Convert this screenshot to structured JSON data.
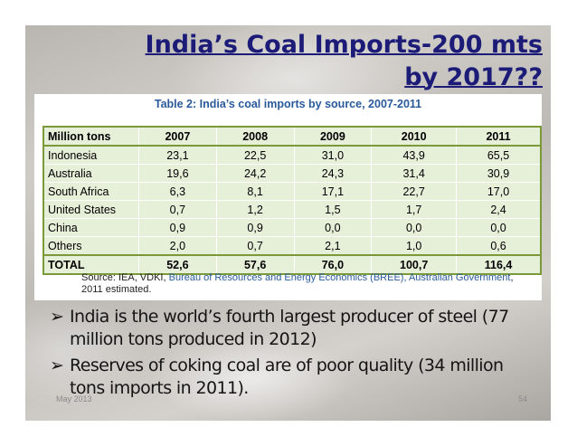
{
  "title": {
    "line1": "India’s Coal Imports-200 mts",
    "line2": "by 2017??"
  },
  "table": {
    "caption": "Table 2: India’s coal imports by source, 2007-2011",
    "header": [
      "Million tons",
      "2007",
      "2008",
      "2009",
      "2010",
      "2011"
    ],
    "rows": [
      [
        "Indonesia",
        "23,1",
        "22,5",
        "31,0",
        "43,9",
        "65,5"
      ],
      [
        "Australia",
        "19,6",
        "24,2",
        "24,3",
        "31,4",
        "30,9"
      ],
      [
        "South Africa",
        "6,3",
        "8,1",
        "17,1",
        "22,7",
        "17,0"
      ],
      [
        "United States",
        "0,7",
        "1,2",
        "1,5",
        "1,7",
        "2,4"
      ],
      [
        "China",
        "0,9",
        "0,9",
        "0,0",
        "0,0",
        "0,0"
      ],
      [
        "Others",
        "2,0",
        "0,7",
        "2,1",
        "1,0",
        "0,6"
      ]
    ],
    "total": [
      "TOTAL",
      "52,6",
      "57,6",
      "76,0",
      "100,7",
      "116,4"
    ],
    "source_prefix": "Source: IEA, VDKI,",
    "source_link": "Bureau of Resources and Energy Economics (BREE), Australian Government",
    "source_suffix": ", 2011 estimated."
  },
  "bullets": [
    "India is the world’s fourth largest producer of steel (77 million tons produced in 2012)",
    "Reserves of coking coal are of poor quality (34 million tons imports in 2011)."
  ],
  "bullet_marker": "➢",
  "footer": {
    "date": "May 2013",
    "page": "54"
  },
  "colors": {
    "title": "#1c1c78",
    "table_fill": "#e6efd8",
    "table_border": "#7a9a3a",
    "caption": "#2a5a9a"
  }
}
